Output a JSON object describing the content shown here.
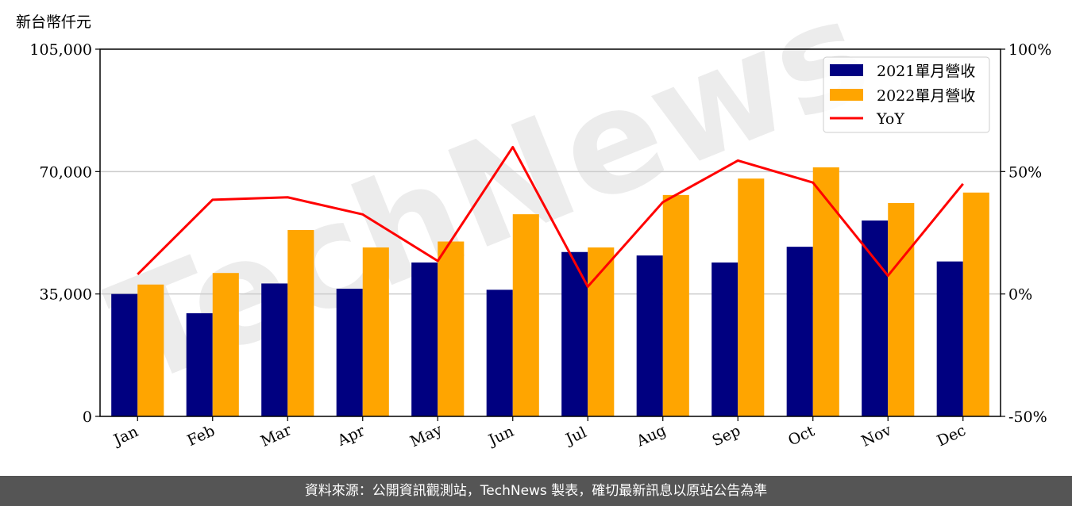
{
  "chart_data": {
    "type": "bar",
    "categories": [
      "Jan",
      "Feb",
      "Mar",
      "Apr",
      "May",
      "Jun",
      "Jul",
      "Aug",
      "Sep",
      "Oct",
      "Nov",
      "Dec"
    ],
    "series": [
      {
        "name": "2021單月營收",
        "values": [
          35000,
          29500,
          38000,
          36500,
          44000,
          36200,
          47000,
          46000,
          44000,
          48500,
          56000,
          44300
        ],
        "color": "#000080"
      },
      {
        "name": "2022單月營收",
        "values": [
          37700,
          41000,
          53300,
          48300,
          50000,
          57800,
          48300,
          63300,
          68000,
          71200,
          61000,
          64000
        ],
        "color": "#ffa500"
      }
    ],
    "line_series": {
      "name": "YoY",
      "values": [
        8,
        38.5,
        39.5,
        32.5,
        13.5,
        60,
        3,
        37.5,
        54.5,
        45.5,
        7.5,
        45
      ],
      "color": "#ff0000"
    },
    "ylabel": "新台幣仟元",
    "ylim": [
      0,
      105000
    ],
    "yticks": [
      "105,000",
      "70,000",
      "35,000",
      "0"
    ],
    "y2lim": [
      -50,
      100
    ],
    "y2ticks": [
      "100%",
      "50%",
      "0%",
      "-50%"
    ],
    "grid": "y",
    "legend_position": "top-right"
  },
  "watermark": "TechNews",
  "footer": {
    "text": "資料來源：公開資訊觀測站，TechNews 製表，確切最新訊息以原站公告為準"
  }
}
